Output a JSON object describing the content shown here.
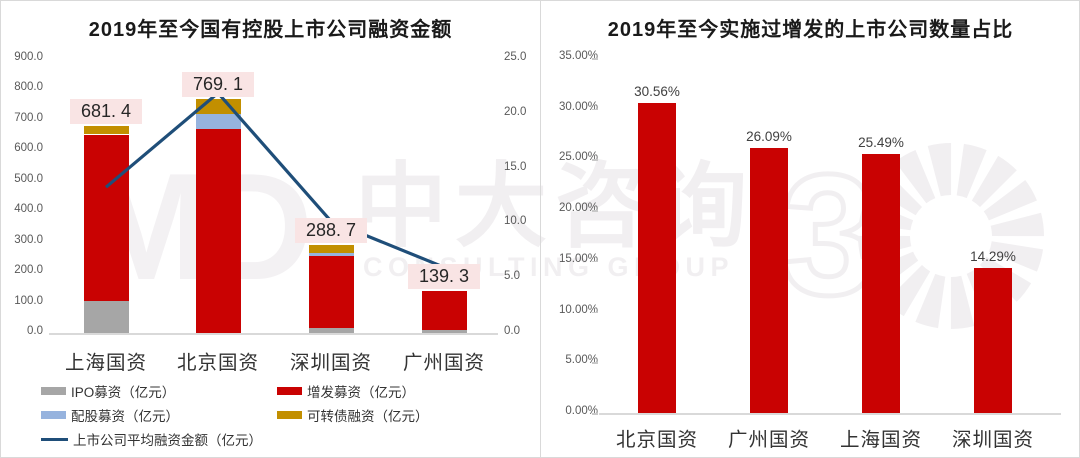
{
  "watermark": {
    "logo_text": "MD",
    "cn_text": "中大咨询",
    "en_text": "CONSULTING GROUP",
    "anniversary_glyph": "3",
    "color": "#f1eff1"
  },
  "colors": {
    "bar_red": "#c90202",
    "ipo_gray": "#a6a6a6",
    "peigu_blue": "#96b3de",
    "kezhuanzhai_gold": "#c28f00",
    "line_blue": "#1f4e79",
    "label_pink_bg": "#f9e4e4",
    "axis_text": "#595959",
    "baseline": "#d9d9d9",
    "panel_border": "#d9d9d9"
  },
  "chart_data": [
    {
      "id": "financing-amount-chart",
      "type": "bar",
      "subtype": "stacked-bar-with-line",
      "title": "2019年至今国有控股上市公司融资金额",
      "categories": [
        "上海国资",
        "北京国资",
        "深圳国资",
        "广州国资"
      ],
      "series": [
        {
          "name": "IPO募资（亿元）",
          "kind": "bar",
          "color": "#a6a6a6",
          "values": [
            105,
            0,
            18,
            10
          ]
        },
        {
          "name": "增发募资（亿元）",
          "kind": "bar",
          "color": "#c90202",
          "values": [
            547,
            670,
            235,
            129.3
          ]
        },
        {
          "name": "配股募资（亿元）",
          "kind": "bar",
          "color": "#96b3de",
          "values": [
            0,
            50,
            11,
            0
          ]
        },
        {
          "name": "可转债融资（亿元）",
          "kind": "bar",
          "color": "#c28f00",
          "values": [
            29.4,
            49.1,
            24.7,
            0
          ]
        },
        {
          "name": "上市公司平均融资金额（亿元）",
          "kind": "line",
          "axis": "right",
          "color": "#1f4e79",
          "values": [
            13.3,
            21.9,
            10.2,
            6.0
          ]
        }
      ],
      "totals": [
        681.4,
        769.1,
        288.7,
        139.3
      ],
      "total_labels": [
        "681. 4",
        "769. 1",
        "288. 7",
        "139. 3"
      ],
      "y_left": {
        "min": 0,
        "max": 900,
        "step": 100,
        "labels": [
          "900.0",
          "800.0",
          "700.0",
          "600.0",
          "500.0",
          "400.0",
          "300.0",
          "200.0",
          "100.0",
          "0.0"
        ]
      },
      "y_right": {
        "min": 0,
        "max": 25,
        "step": 5,
        "labels": [
          "25.0",
          "20.0",
          "15.0",
          "10.0",
          "5.0",
          "0.0"
        ]
      },
      "grid": false,
      "legend_position": "bottom-left"
    },
    {
      "id": "seo-ratio-chart",
      "type": "bar",
      "title": "2019年至今实施过增发的上市公司数量占比",
      "categories": [
        "北京国资",
        "广州国资",
        "上海国资",
        "深圳国资"
      ],
      "values": [
        30.56,
        26.09,
        25.49,
        14.29
      ],
      "value_labels": [
        "30.56%",
        "26.09%",
        "25.49%",
        "14.29%"
      ],
      "bar_color": "#c90202",
      "ylim": [
        0,
        35
      ],
      "y_ticks": {
        "min": 0,
        "max": 35,
        "step": 5,
        "labels": [
          "35.00%",
          "30.00%",
          "25.00%",
          "20.00%",
          "15.00%",
          "10.00%",
          "5.00%",
          "0.00%"
        ]
      },
      "grid": false,
      "legend_position": "none"
    }
  ]
}
